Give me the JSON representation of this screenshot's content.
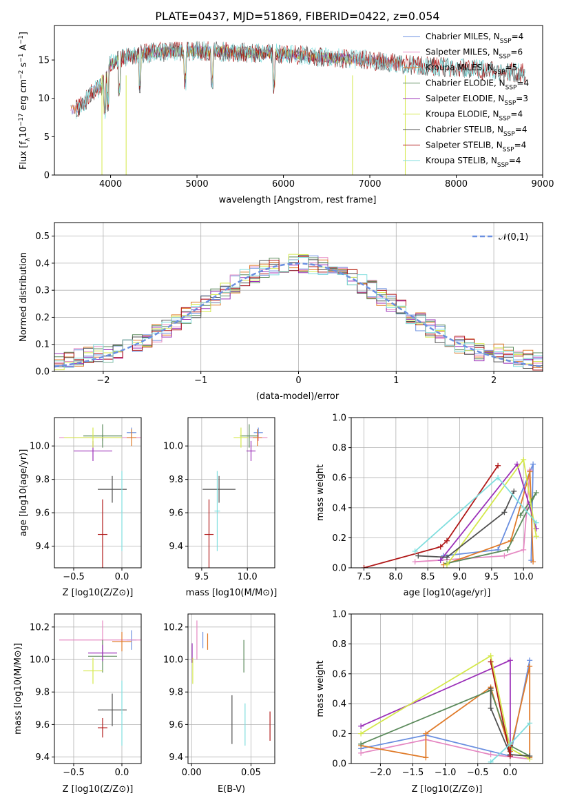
{
  "figure": {
    "title": "PLATE=0437, MJD=51869, FIBERID=0422, z=0.054"
  },
  "colors": {
    "Chabrier MILES": "#6a8fe0",
    "Salpeter MILES": "#e588c2",
    "Kroupa MILES": "#e07b2a",
    "Chabrier ELODIE": "#5b8a5b",
    "Salpeter ELODIE": "#9b30b8",
    "Kroupa ELODIE": "#d4e84a",
    "Chabrier STELIB": "#505050",
    "Salpeter STELIB": "#b01818",
    "Kroupa STELIB": "#7fdede"
  },
  "chart_data": [
    {
      "id": "spectrum",
      "type": "line",
      "xlabel": "wavelength [Angstrom, rest frame]",
      "ylabel": "Flux [f_λ 10^-17 erg cm^-2 s^-1 A^-1]",
      "xlim": [
        3350,
        9000
      ],
      "ylim": [
        0,
        19.5
      ],
      "xticks": [
        4000,
        5000,
        6000,
        7000,
        8000,
        9000
      ],
      "yticks": [
        0,
        5,
        10,
        15
      ],
      "grid": false,
      "legend_position": "right",
      "legend": [
        {
          "name": "Chabrier MILES",
          "label": "Chabrier MILES, N",
          "sub": "SSP",
          "eq": "=4"
        },
        {
          "name": "Salpeter MILES",
          "label": "Salpeter MILES, N",
          "sub": "SSP",
          "eq": "=6"
        },
        {
          "name": "Kroupa MILES",
          "label": "Kroupa MILES, N",
          "sub": "SSP",
          "eq": "=5"
        },
        {
          "name": "Chabrier ELODIE",
          "label": "Chabrier ELODIE, N",
          "sub": "SSP",
          "eq": "=4"
        },
        {
          "name": "Salpeter ELODIE",
          "label": "Salpeter ELODIE, N",
          "sub": "SSP",
          "eq": "=3"
        },
        {
          "name": "Kroupa ELODIE",
          "label": "Kroupa ELODIE, N",
          "sub": "SSP",
          "eq": "=4"
        },
        {
          "name": "Chabrier STELIB",
          "label": "Chabrier STELIB, N",
          "sub": "SSP",
          "eq": "=4"
        },
        {
          "name": "Salpeter STELIB",
          "label": "Salpeter STELIB, N",
          "sub": "SSP",
          "eq": "=4"
        },
        {
          "name": "Kroupa STELIB",
          "label": "Kroupa STELIB, N",
          "sub": "SSP",
          "eq": "=4"
        }
      ],
      "continuum": [
        [
          3600,
          8.5
        ],
        [
          3700,
          9.5
        ],
        [
          3800,
          11
        ],
        [
          3900,
          11.5
        ],
        [
          4000,
          14.5
        ],
        [
          4200,
          15.5
        ],
        [
          4500,
          16
        ],
        [
          5000,
          16.2
        ],
        [
          5500,
          16
        ],
        [
          6000,
          15.8
        ],
        [
          6500,
          15.3
        ],
        [
          7000,
          15
        ],
        [
          7500,
          14.3
        ],
        [
          8000,
          14
        ],
        [
          8500,
          13.5
        ],
        [
          8800,
          13.3
        ]
      ],
      "ranges": {
        "Chabrier MILES": [
          3540,
          7410
        ],
        "Salpeter MILES": [
          3540,
          7410
        ],
        "Kroupa MILES": [
          3540,
          7410
        ],
        "Chabrier ELODIE": [
          3900,
          6800
        ],
        "Salpeter ELODIE": [
          3900,
          6800
        ],
        "Kroupa ELODIE": [
          3900,
          6800
        ],
        "Chabrier STELIB": [
          3600,
          8800
        ],
        "Salpeter STELIB": [
          3600,
          8800
        ],
        "Kroupa STELIB": [
          3600,
          8800
        ]
      }
    },
    {
      "id": "residuals",
      "type": "step-histogram",
      "xlabel": "(data-model)/error",
      "ylabel": "Normed distribution",
      "xlim": [
        -2.5,
        2.5
      ],
      "ylim": [
        0,
        0.55
      ],
      "xticks": [
        -2,
        -1,
        0,
        1,
        2
      ],
      "yticks": [
        0.0,
        0.1,
        0.2,
        0.3,
        0.4,
        0.5
      ],
      "grid": true,
      "bin_width": 0.1,
      "reference": {
        "label": "𝒩(0,1)",
        "color": "#6a8fe0",
        "mean": 0,
        "sigma": 1
      },
      "legend_position": "top-right"
    },
    {
      "id": "age-vs-Z",
      "type": "errorbar",
      "xlabel": "Z [log10(Z/Z⊙)]",
      "ylabel": "age [log10(age/yr)]",
      "xlim": [
        -0.7,
        0.2
      ],
      "ylim": [
        9.27,
        10.17
      ],
      "xticks": [
        -0.5,
        0.0
      ],
      "yticks": [
        9.4,
        9.6,
        9.8,
        10.0
      ],
      "points": [
        {
          "name": "Chabrier MILES",
          "x": 0.1,
          "xerr": 0.05,
          "y": 10.08,
          "yerr": 0.03
        },
        {
          "name": "Salpeter MILES",
          "x": -0.2,
          "xerr": 0.45,
          "y": 10.05,
          "yerr": 0.02
        },
        {
          "name": "Kroupa MILES",
          "x": 0.1,
          "xerr": 0.05,
          "y": 10.05,
          "yerr": 0.05
        },
        {
          "name": "Chabrier ELODIE",
          "x": -0.2,
          "xerr": 0.2,
          "y": 10.06,
          "yerr": 0.07
        },
        {
          "name": "Salpeter ELODIE",
          "x": -0.3,
          "xerr": 0.2,
          "y": 9.97,
          "yerr": 0.06
        },
        {
          "name": "Kroupa ELODIE",
          "x": -0.3,
          "xerr": 0.3,
          "y": 10.05,
          "yerr": 0.06
        },
        {
          "name": "Chabrier STELIB",
          "x": -0.1,
          "xerr": 0.15,
          "y": 9.74,
          "yerr": 0.08
        },
        {
          "name": "Salpeter STELIB",
          "x": -0.2,
          "xerr": 0.05,
          "y": 9.47,
          "yerr": 0.21
        },
        {
          "name": "Kroupa STELIB",
          "x": 0.0,
          "xerr": 0.005,
          "y": 9.61,
          "yerr": 0.24
        }
      ]
    },
    {
      "id": "age-vs-mass",
      "type": "errorbar",
      "xlabel": "mass [log10(M/M⊙)]",
      "ylabel": "",
      "xlim": [
        9.35,
        10.3
      ],
      "ylim": [
        9.27,
        10.17
      ],
      "xticks": [
        9.5,
        10.0
      ],
      "yticks": [
        9.4,
        9.6,
        9.8,
        10.0
      ],
      "points": [
        {
          "name": "Chabrier MILES",
          "x": 10.12,
          "xerr": 0.05,
          "y": 10.08,
          "yerr": 0.03
        },
        {
          "name": "Salpeter MILES",
          "x": 10.12,
          "xerr": 0.1,
          "y": 10.05,
          "yerr": 0.02
        },
        {
          "name": "Kroupa MILES",
          "x": 10.11,
          "xerr": 0.05,
          "y": 10.05,
          "yerr": 0.05
        },
        {
          "name": "Chabrier ELODIE",
          "x": 10.02,
          "xerr": 0.1,
          "y": 10.06,
          "yerr": 0.07
        },
        {
          "name": "Salpeter ELODIE",
          "x": 10.04,
          "xerr": 0.05,
          "y": 9.97,
          "yerr": 0.06
        },
        {
          "name": "Kroupa ELODIE",
          "x": 9.93,
          "xerr": 0.08,
          "y": 10.05,
          "yerr": 0.06
        },
        {
          "name": "Chabrier STELIB",
          "x": 9.69,
          "xerr": 0.18,
          "y": 9.74,
          "yerr": 0.08
        },
        {
          "name": "Salpeter STELIB",
          "x": 9.58,
          "xerr": 0.05,
          "y": 9.47,
          "yerr": 0.21
        },
        {
          "name": "Kroupa STELIB",
          "x": 9.67,
          "xerr": 0.03,
          "y": 9.61,
          "yerr": 0.24
        }
      ]
    },
    {
      "id": "weight-vs-age",
      "type": "line",
      "xlabel": "age [log10(age/yr)]",
      "ylabel": "mass weight",
      "xlim": [
        7.3,
        10.3
      ],
      "ylim": [
        0,
        1
      ],
      "xticks": [
        7.5,
        8.0,
        8.5,
        9.0,
        9.5,
        10.0
      ],
      "yticks": [
        0.0,
        0.2,
        0.4,
        0.6,
        0.8,
        1.0
      ],
      "grid": true,
      "series": [
        {
          "name": "Chabrier MILES",
          "x": [
            8.75,
            9.6,
            10.15,
            10.12
          ],
          "y": [
            0.08,
            0.12,
            0.69,
            0.05
          ]
        },
        {
          "name": "Salpeter MILES",
          "x": [
            8.3,
            9.7,
            10.0,
            10.1
          ],
          "y": [
            0.04,
            0.08,
            0.12,
            0.65
          ]
        },
        {
          "name": "Kroupa MILES",
          "x": [
            8.75,
            9.8,
            10.1,
            10.15
          ],
          "y": [
            0.02,
            0.18,
            0.64,
            0.04
          ]
        },
        {
          "name": "Chabrier ELODIE",
          "x": [
            8.8,
            9.75,
            10.2,
            9.95
          ],
          "y": [
            0.03,
            0.12,
            0.5,
            0.35
          ]
        },
        {
          "name": "Salpeter ELODIE",
          "x": [
            8.7,
            9.9,
            10.2
          ],
          "y": [
            0.05,
            0.69,
            0.26
          ]
        },
        {
          "name": "Kroupa ELODIE",
          "x": [
            8.8,
            10.0,
            10.2
          ],
          "y": [
            0.02,
            0.72,
            0.21
          ]
        },
        {
          "name": "Chabrier STELIB",
          "x": [
            8.35,
            8.8,
            9.7,
            9.85
          ],
          "y": [
            0.08,
            0.07,
            0.37,
            0.51
          ]
        },
        {
          "name": "Salpeter STELIB",
          "x": [
            7.5,
            8.7,
            8.8,
            9.6
          ],
          "y": [
            0.0,
            0.14,
            0.18,
            0.68
          ]
        },
        {
          "name": "Kroupa STELIB",
          "x": [
            8.3,
            9.6,
            10.2
          ],
          "y": [
            0.11,
            0.6,
            0.3
          ]
        }
      ]
    },
    {
      "id": "mass-vs-Z",
      "type": "errorbar",
      "xlabel": "Z [log10(Z/Z⊙)]",
      "ylabel": "mass [log10(M/M⊙)]",
      "xlim": [
        -0.7,
        0.2
      ],
      "ylim": [
        9.36,
        10.28
      ],
      "xticks": [
        -0.5,
        0.0
      ],
      "yticks": [
        9.4,
        9.6,
        9.8,
        10.0,
        10.2
      ],
      "points": [
        {
          "name": "Chabrier MILES",
          "x": 0.1,
          "xerr": 0.05,
          "y": 10.12,
          "yerr": 0.06
        },
        {
          "name": "Salpeter MILES",
          "x": -0.2,
          "xerr": 0.45,
          "y": 10.12,
          "yerr": 0.12
        },
        {
          "name": "Kroupa MILES",
          "x": 0.0,
          "xerr": 0.1,
          "y": 10.11,
          "yerr": 0.06
        },
        {
          "name": "Chabrier ELODIE",
          "x": -0.2,
          "xerr": 0.15,
          "y": 10.02,
          "yerr": 0.1
        },
        {
          "name": "Salpeter ELODIE",
          "x": -0.2,
          "xerr": 0.15,
          "y": 10.04,
          "yerr": 0.05
        },
        {
          "name": "Kroupa ELODIE",
          "x": -0.3,
          "xerr": 0.1,
          "y": 9.93,
          "yerr": 0.08
        },
        {
          "name": "Chabrier STELIB",
          "x": -0.1,
          "xerr": 0.15,
          "y": 9.69,
          "yerr": 0.1
        },
        {
          "name": "Salpeter STELIB",
          "x": -0.2,
          "xerr": 0.05,
          "y": 9.58,
          "yerr": 0.06
        },
        {
          "name": "Kroupa STELIB",
          "x": 0.0,
          "xerr": 0.005,
          "y": 9.67,
          "yerr": 0.2
        }
      ]
    },
    {
      "id": "mass-vs-ebv",
      "type": "errorbar",
      "xlabel": "E(B-V)",
      "ylabel": "",
      "xlim": [
        -0.003,
        0.07
      ],
      "ylim": [
        9.36,
        10.28
      ],
      "xticks": [
        0.0,
        0.05
      ],
      "yticks": [
        9.4,
        9.6,
        9.8,
        10.0,
        10.2
      ],
      "points": [
        {
          "name": "Chabrier MILES",
          "x": 0.0095,
          "y": 10.12,
          "yerr": 0.05
        },
        {
          "name": "Salpeter MILES",
          "x": 0.0045,
          "y": 10.12,
          "yerr": 0.12
        },
        {
          "name": "Kroupa MILES",
          "x": 0.0135,
          "y": 10.11,
          "yerr": 0.05
        },
        {
          "name": "Chabrier ELODIE",
          "x": 0.044,
          "y": 10.02,
          "yerr": 0.1
        },
        {
          "name": "Salpeter ELODIE",
          "x": 0.0005,
          "y": 10.04,
          "yerr": 0.06
        },
        {
          "name": "Kroupa ELODIE",
          "x": 0.001,
          "y": 9.93,
          "yerr": 0.08
        },
        {
          "name": "Chabrier STELIB",
          "x": 0.034,
          "y": 9.63,
          "yerr": 0.15
        },
        {
          "name": "Salpeter STELIB",
          "x": 0.066,
          "y": 9.59,
          "yerr": 0.09
        },
        {
          "name": "Kroupa STELIB",
          "x": 0.045,
          "y": 9.6,
          "yerr": 0.13
        }
      ]
    },
    {
      "id": "weight-vs-Z",
      "type": "line",
      "xlabel": "Z [log10(Z/Z⊙)]",
      "ylabel": "mass weight",
      "xlim": [
        -2.45,
        0.5
      ],
      "ylim": [
        0,
        1
      ],
      "xticks": [
        -2.0,
        -1.5,
        -1.0,
        -0.5,
        0.0
      ],
      "yticks": [
        0.0,
        0.2,
        0.4,
        0.6,
        0.8,
        1.0
      ],
      "grid": true,
      "series": [
        {
          "name": "Chabrier MILES",
          "x": [
            -2.3,
            -1.3,
            0.0,
            0.3
          ],
          "y": [
            0.1,
            0.19,
            0.05,
            0.69
          ]
        },
        {
          "name": "Salpeter MILES",
          "x": [
            -2.3,
            -1.3,
            -0.3,
            0.3
          ],
          "y": [
            0.07,
            0.16,
            0.06,
            0.03
          ]
        },
        {
          "name": "Kroupa MILES",
          "x": [
            -2.3,
            -1.3,
            -1.3,
            -0.3,
            0.0,
            0.3,
            0.3
          ],
          "y": [
            0.12,
            0.04,
            0.2,
            0.51,
            0.08,
            0.65,
            0.04
          ]
        },
        {
          "name": "Chabrier ELODIE",
          "x": [
            -2.3,
            -0.3,
            0.0,
            0.3
          ],
          "y": [
            0.13,
            0.49,
            0.12,
            0.05
          ]
        },
        {
          "name": "Salpeter ELODIE",
          "x": [
            -2.3,
            0.0,
            0.0
          ],
          "y": [
            0.25,
            0.69,
            0.05
          ]
        },
        {
          "name": "Kroupa ELODIE",
          "x": [
            -2.3,
            -0.3,
            0.0,
            0.3
          ],
          "y": [
            0.2,
            0.72,
            0.1,
            0.03
          ]
        },
        {
          "name": "Chabrier STELIB",
          "x": [
            -0.3,
            -0.3,
            0.0,
            0.3
          ],
          "y": [
            0.5,
            0.37,
            0.06,
            0.05
          ]
        },
        {
          "name": "Salpeter STELIB",
          "x": [
            -0.3,
            0.0,
            0.0
          ],
          "y": [
            0.68,
            0.05,
            0.12
          ]
        },
        {
          "name": "Kroupa STELIB",
          "x": [
            -0.3,
            0.0,
            0.3
          ],
          "y": [
            0.01,
            0.13,
            0.27
          ]
        }
      ]
    }
  ]
}
